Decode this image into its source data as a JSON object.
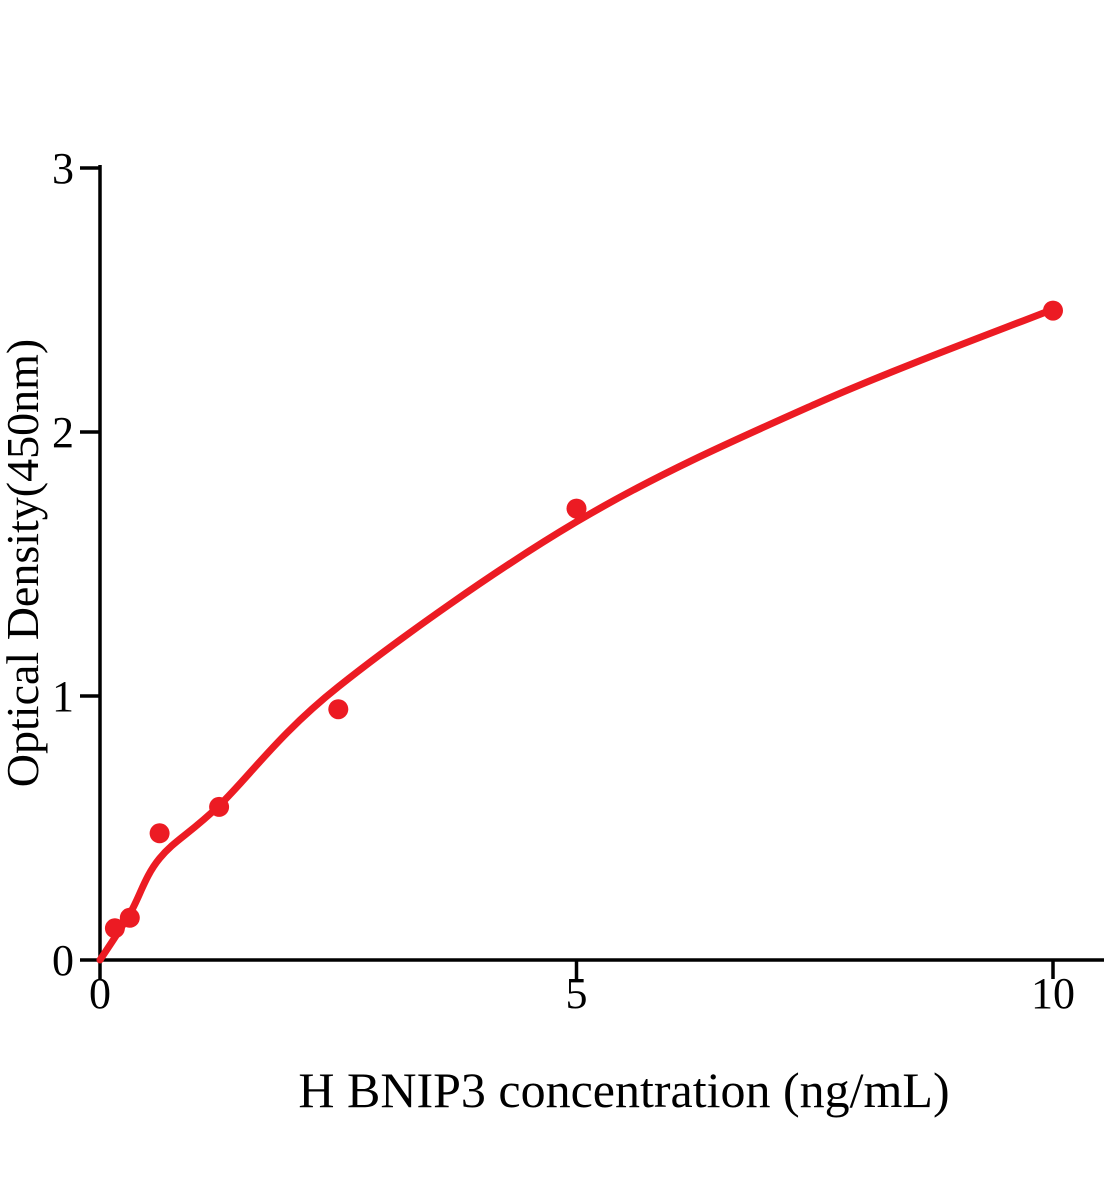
{
  "page": {
    "background": "#ffffff",
    "text_color": "#000000"
  },
  "chart_data": {
    "type": "scatter",
    "title": "",
    "xlabel": "H BNIP3 concentration (ng/mL)",
    "ylabel": "Optical Density(450nm)",
    "xlim": [
      0,
      10.55
    ],
    "ylim": [
      0,
      3
    ],
    "x_ticks": [
      "0",
      "5",
      "10"
    ],
    "y_ticks": [
      "0",
      "1",
      "2",
      "3"
    ],
    "grid": false,
    "legend": "none",
    "accent_color": "#ec1b23",
    "series": [
      {
        "name": "standard-points",
        "type": "scatter",
        "color": "#ec1b23",
        "marker_radius": 10,
        "points": [
          [
            0.156,
            0.12
          ],
          [
            0.313,
            0.16
          ],
          [
            0.625,
            0.48
          ],
          [
            1.25,
            0.58
          ],
          [
            2.5,
            0.95
          ],
          [
            5,
            1.71
          ],
          [
            10,
            2.46
          ]
        ]
      },
      {
        "name": "fit-curve",
        "type": "line",
        "color": "#ec1b23",
        "stroke_width": 7,
        "points": [
          [
            0,
            0
          ],
          [
            0.313,
            0.175
          ],
          [
            0.625,
            0.385
          ],
          [
            1.25,
            0.585
          ],
          [
            2.5,
            1.035
          ],
          [
            5,
            1.66
          ],
          [
            7.5,
            2.105
          ],
          [
            10,
            2.465
          ]
        ]
      }
    ]
  }
}
